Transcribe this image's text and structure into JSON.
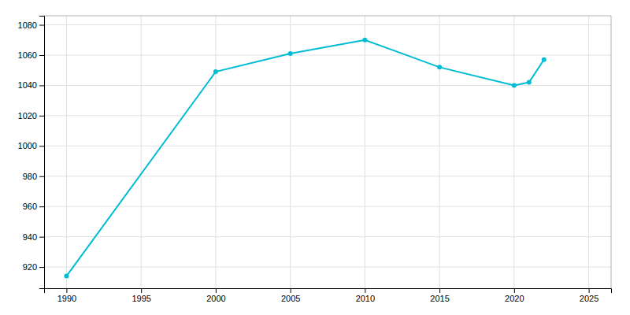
{
  "chart_data": {
    "type": "line",
    "x": [
      1990,
      2000,
      2005,
      2010,
      2015,
      2020,
      2021,
      2022
    ],
    "values": [
      914,
      1049,
      1061,
      1070,
      1052,
      1040,
      1042,
      1057
    ],
    "color": "#00BCD4",
    "marker": "circle",
    "xlim": [
      1988.5,
      2026.5
    ],
    "ylim": [
      906,
      1086
    ],
    "xticks": [
      1990,
      1995,
      2000,
      2005,
      2010,
      2015,
      2020,
      2025
    ],
    "yticks": [
      920,
      940,
      960,
      980,
      1000,
      1020,
      1040,
      1060,
      1080
    ],
    "grid": true
  }
}
